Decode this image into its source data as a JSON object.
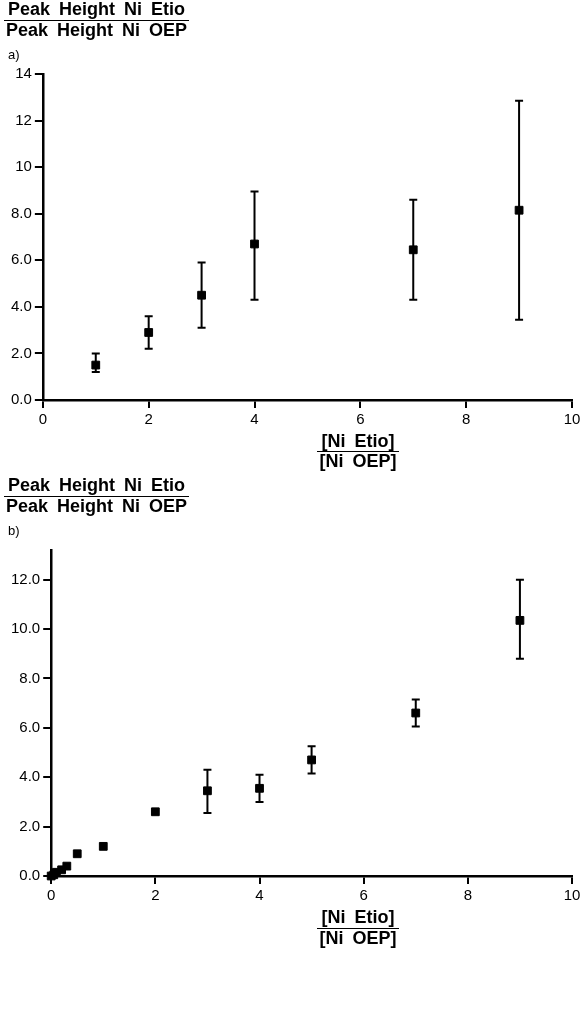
{
  "chart_data": [
    {
      "type": "scatter",
      "title": "a)",
      "ylabel": "Peak Height Ni Etio\nPeak Height Ni OEP",
      "xlabel": "[Ni Etio]\n[Ni OEP]",
      "marker": "square",
      "color": "#000000",
      "x": [
        1,
        2,
        3,
        4,
        7,
        9
      ],
      "values": [
        1.5,
        2.9,
        4.5,
        6.7,
        6.45,
        8.15
      ],
      "errors": [
        [
          1.2,
          2.0
        ],
        [
          2.2,
          3.6
        ],
        [
          3.1,
          5.9
        ],
        [
          4.3,
          8.95
        ],
        [
          4.3,
          8.6
        ],
        [
          3.45,
          12.85
        ]
      ],
      "xlim": [
        0,
        10
      ],
      "xticks": [
        0,
        2,
        4,
        6,
        8,
        10
      ],
      "ylim": [
        0,
        14
      ],
      "yticks": [
        {
          "value": 0,
          "label": "0.0"
        },
        {
          "value": 2,
          "label": "2.0"
        },
        {
          "value": 4,
          "label": "4.0"
        },
        {
          "value": 6,
          "label": "6.0"
        },
        {
          "value": 8,
          "label": "8.0"
        },
        10,
        12,
        14
      ],
      "grid": false
    },
    {
      "type": "scatter",
      "title": "b)",
      "ylabel": "Peak Height Ni Etio\nPeak Height Ni OEP",
      "xlabel": "[Ni Etio]\n[Ni OEP]",
      "marker": "square",
      "color": "#000000",
      "x": [
        0,
        0.05,
        0.1,
        0.2,
        0.3,
        0.5,
        1,
        2,
        3,
        4,
        5,
        7,
        9
      ],
      "values": [
        0,
        0.05,
        0.15,
        0.25,
        0.4,
        0.9,
        1.2,
        2.6,
        3.45,
        3.55,
        4.7,
        6.6,
        10.35
      ],
      "errors": [
        null,
        null,
        null,
        null,
        null,
        null,
        null,
        null,
        [
          2.55,
          4.3
        ],
        [
          3.0,
          4.1
        ],
        [
          4.15,
          5.25
        ],
        [
          6.05,
          7.15
        ],
        [
          8.8,
          12.0
        ]
      ],
      "xlim": [
        0,
        10
      ],
      "xticks": [
        0,
        2,
        4,
        6,
        8,
        10
      ],
      "ylim": [
        0,
        13.2
      ],
      "yticks": [
        {
          "value": 0,
          "label": "0.0"
        },
        {
          "value": 2,
          "label": "2.0"
        },
        {
          "value": 4,
          "label": "4.0"
        },
        {
          "value": 6,
          "label": "6.0"
        },
        {
          "value": 8,
          "label": "8.0"
        },
        {
          "value": 10,
          "label": "10.0"
        },
        {
          "value": 12,
          "label": "12.0"
        }
      ],
      "grid": false
    }
  ]
}
